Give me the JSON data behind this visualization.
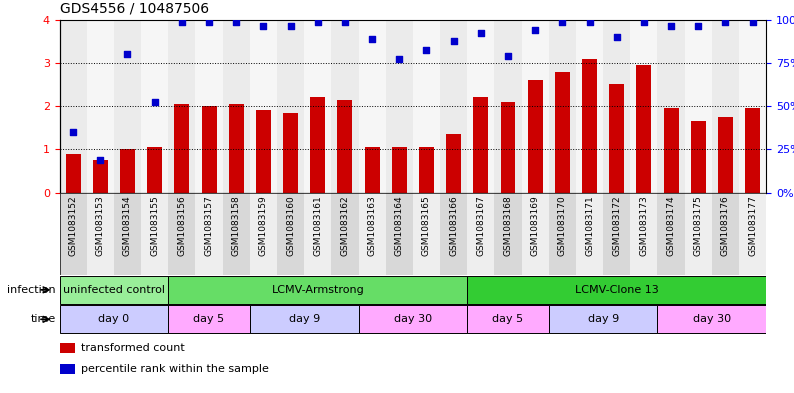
{
  "title": "GDS4556 / 10487506",
  "samples": [
    "GSM1083152",
    "GSM1083153",
    "GSM1083154",
    "GSM1083155",
    "GSM1083156",
    "GSM1083157",
    "GSM1083158",
    "GSM1083159",
    "GSM1083160",
    "GSM1083161",
    "GSM1083162",
    "GSM1083163",
    "GSM1083164",
    "GSM1083165",
    "GSM1083166",
    "GSM1083167",
    "GSM1083168",
    "GSM1083169",
    "GSM1083170",
    "GSM1083171",
    "GSM1083172",
    "GSM1083173",
    "GSM1083174",
    "GSM1083175",
    "GSM1083176",
    "GSM1083177"
  ],
  "red_bars": [
    0.9,
    0.75,
    1.0,
    1.05,
    2.05,
    2.0,
    2.05,
    1.9,
    1.85,
    2.2,
    2.15,
    1.05,
    1.05,
    1.05,
    1.35,
    2.2,
    2.1,
    2.6,
    2.8,
    3.1,
    2.5,
    2.95,
    1.95,
    1.65,
    1.75,
    1.95
  ],
  "blue_dots": [
    1.4,
    0.75,
    3.2,
    2.1,
    3.95,
    3.95,
    3.95,
    3.85,
    3.85,
    3.95,
    3.95,
    3.55,
    3.1,
    3.3,
    3.5,
    3.7,
    3.15,
    3.75,
    3.95,
    3.95,
    3.6,
    3.95,
    3.85,
    3.85,
    3.95,
    3.95
  ],
  "bar_color": "#cc0000",
  "dot_color": "#0000cc",
  "ylim_left": [
    0,
    4
  ],
  "ylim_right": [
    0,
    100
  ],
  "yticks_left": [
    0,
    1,
    2,
    3,
    4
  ],
  "yticks_right": [
    0,
    25,
    50,
    75,
    100
  ],
  "ytick_labels_right": [
    "0%",
    "25%",
    "50%",
    "75%",
    "100%"
  ],
  "groups_infection": [
    {
      "label": "uninfected control",
      "start": 0,
      "end": 4,
      "color": "#99ee99"
    },
    {
      "label": "LCMV-Armstrong",
      "start": 4,
      "end": 15,
      "color": "#66dd66"
    },
    {
      "label": "LCMV-Clone 13",
      "start": 15,
      "end": 26,
      "color": "#33cc33"
    }
  ],
  "groups_time": [
    {
      "label": "day 0",
      "start": 0,
      "end": 4,
      "color": "#ccccff"
    },
    {
      "label": "day 5",
      "start": 4,
      "end": 7,
      "color": "#ffaaff"
    },
    {
      "label": "day 9",
      "start": 7,
      "end": 11,
      "color": "#ccccff"
    },
    {
      "label": "day 30",
      "start": 11,
      "end": 15,
      "color": "#ffaaff"
    },
    {
      "label": "day 5",
      "start": 15,
      "end": 18,
      "color": "#ffaaff"
    },
    {
      "label": "day 9",
      "start": 18,
      "end": 22,
      "color": "#ccccff"
    },
    {
      "label": "day 30",
      "start": 22,
      "end": 26,
      "color": "#ffaaff"
    }
  ],
  "infection_label": "infection",
  "time_label": "time",
  "legend": [
    {
      "color": "#cc0000",
      "label": "transformed count"
    },
    {
      "color": "#0000cc",
      "label": "percentile rank within the sample"
    }
  ],
  "bg_color": "#ffffff",
  "tick_col_even": "#d8d8d8",
  "tick_col_odd": "#eeeeee"
}
